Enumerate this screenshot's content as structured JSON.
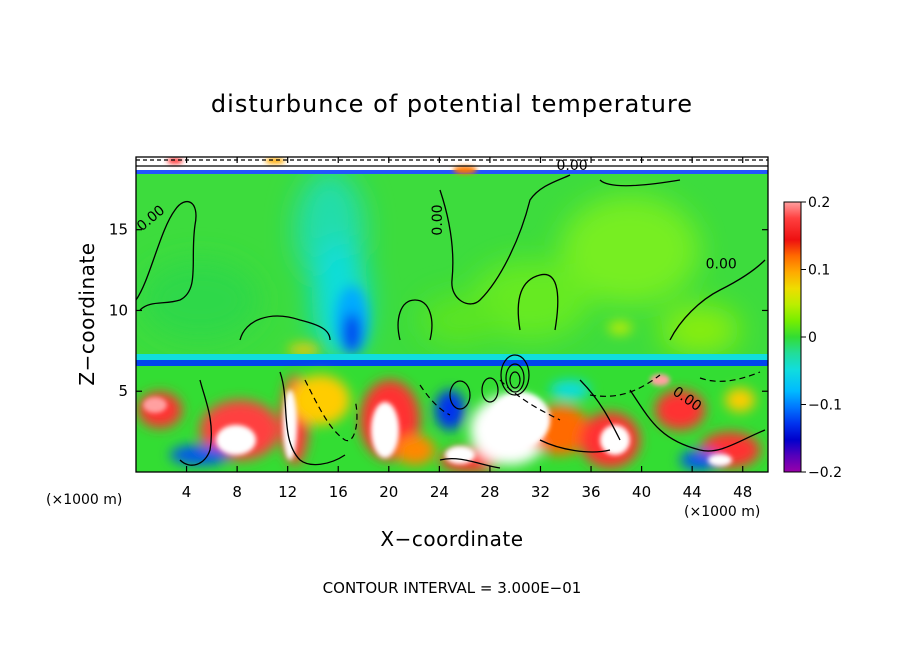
{
  "chart_data": {
    "type": "heatmap",
    "title": "disturbunce of potential temperature",
    "xlabel": "X−coordinate",
    "ylabel": "Z−coordinate",
    "x_unit": "(×1000 m)",
    "z_unit": "(×1000 m)",
    "xlim": [
      0,
      50
    ],
    "ylim": [
      0,
      19.5
    ],
    "x_ticks": [
      4,
      8,
      12,
      16,
      20,
      24,
      28,
      32,
      36,
      40,
      44,
      48
    ],
    "y_ticks": [
      5,
      10,
      15
    ],
    "colorbar": {
      "range": [
        -0.2,
        0.2
      ],
      "ticks": [
        0.2,
        0.1,
        0,
        -0.1,
        -0.2
      ],
      "tick_labels": [
        "0.2",
        "0.1",
        "0",
        "−0.1",
        "−0.2"
      ],
      "colors": [
        "#ffa0a0",
        "#ff3030",
        "#f21414",
        "#ff6a00",
        "#ff9900",
        "#ffcc00",
        "#dddd00",
        "#aaee00",
        "#77ee00",
        "#33dd33",
        "#22ddaa",
        "#11dddd",
        "#00bbff",
        "#0088ff",
        "#0044ee",
        "#0000cc",
        "#6600aa",
        "#9900aa"
      ]
    },
    "contour_labels": [
      {
        "x": 1.4,
        "z": 15.5,
        "text": "0.00",
        "angle": -40
      },
      {
        "x": 24.2,
        "z": 15.6,
        "text": "0.00",
        "angle": -90
      },
      {
        "x": 34.5,
        "z": 18.7,
        "text": "0.00",
        "angle": 0
      },
      {
        "x": 46.3,
        "z": 12.6,
        "text": "0.00",
        "angle": 0
      },
      {
        "x": 43.4,
        "z": 4.3,
        "text": "0.00",
        "angle": 35
      }
    ],
    "contour_interval_text": "CONTOUR INTERVAL = 3.000E−01",
    "field_description_points": [
      {
        "x": 17.5,
        "z": 10.0,
        "value": -0.15
      },
      {
        "x": 17.0,
        "z": 13.0,
        "value": -0.07
      },
      {
        "x": 8.0,
        "z": 5.0,
        "value": 0.2
      },
      {
        "x": 30.0,
        "z": 2.5,
        "value": 0.2
      },
      {
        "x": 44.0,
        "z": 15.0,
        "value": 0.03
      },
      {
        "x": 5.0,
        "z": 12.0,
        "value": -0.02
      }
    ]
  }
}
